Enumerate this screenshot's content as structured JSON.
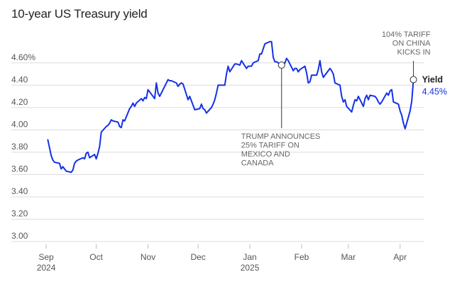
{
  "title": "10-year US Treasury yield",
  "colors": {
    "line": "#1431e8",
    "grid": "#dcdcdc",
    "text": "#555555",
    "marker": "#333333"
  },
  "chart_data": {
    "type": "line",
    "title": "10-year US Treasury yield",
    "xlabel": "",
    "ylabel": "",
    "ylim": [
      3.0,
      4.7
    ],
    "xlim": [
      "2024-08-29",
      "2025-04-13"
    ],
    "y_ticks": [
      {
        "value": 3.0,
        "label": "3.00"
      },
      {
        "value": 3.2,
        "label": "3.20"
      },
      {
        "value": 3.4,
        "label": "3.40"
      },
      {
        "value": 3.6,
        "label": "3.60"
      },
      {
        "value": 3.8,
        "label": "3.80"
      },
      {
        "value": 4.0,
        "label": "4.00"
      },
      {
        "value": 4.2,
        "label": "4.20"
      },
      {
        "value": 4.4,
        "label": "4.40"
      },
      {
        "value": 4.6,
        "label": "4.60%"
      }
    ],
    "x_ticks": [
      {
        "date": "2024-09-01",
        "label": "Sep",
        "sub": "2024"
      },
      {
        "date": "2024-10-01",
        "label": "Oct",
        "sub": ""
      },
      {
        "date": "2024-11-01",
        "label": "Nov",
        "sub": ""
      },
      {
        "date": "2024-12-01",
        "label": "Dec",
        "sub": ""
      },
      {
        "date": "2025-01-01",
        "label": "Jan",
        "sub": "2025"
      },
      {
        "date": "2025-02-01",
        "label": "Feb",
        "sub": ""
      },
      {
        "date": "2025-03-01",
        "label": "Mar",
        "sub": ""
      },
      {
        "date": "2025-04-01",
        "label": "Apr",
        "sub": ""
      }
    ],
    "series": [
      {
        "values": [
          [
            "2024-09-02",
            3.91
          ],
          [
            "2024-09-03",
            3.84
          ],
          [
            "2024-09-04",
            3.77
          ],
          [
            "2024-09-05",
            3.73
          ],
          [
            "2024-09-06",
            3.71
          ],
          [
            "2024-09-09",
            3.7
          ],
          [
            "2024-09-10",
            3.65
          ],
          [
            "2024-09-11",
            3.67
          ],
          [
            "2024-09-12",
            3.65
          ],
          [
            "2024-09-13",
            3.63
          ],
          [
            "2024-09-16",
            3.62
          ],
          [
            "2024-09-17",
            3.64
          ],
          [
            "2024-09-18",
            3.7
          ],
          [
            "2024-09-19",
            3.72
          ],
          [
            "2024-09-20",
            3.73
          ],
          [
            "2024-09-23",
            3.75
          ],
          [
            "2024-09-24",
            3.74
          ],
          [
            "2024-09-25",
            3.79
          ],
          [
            "2024-09-26",
            3.8
          ],
          [
            "2024-09-27",
            3.75
          ],
          [
            "2024-09-30",
            3.78
          ],
          [
            "2024-10-01",
            3.74
          ],
          [
            "2024-10-02",
            3.79
          ],
          [
            "2024-10-03",
            3.85
          ],
          [
            "2024-10-04",
            3.98
          ],
          [
            "2024-10-07",
            4.03
          ],
          [
            "2024-10-08",
            4.04
          ],
          [
            "2024-10-09",
            4.06
          ],
          [
            "2024-10-10",
            4.09
          ],
          [
            "2024-10-11",
            4.08
          ],
          [
            "2024-10-14",
            4.07
          ],
          [
            "2024-10-15",
            4.03
          ],
          [
            "2024-10-16",
            4.02
          ],
          [
            "2024-10-17",
            4.09
          ],
          [
            "2024-10-18",
            4.08
          ],
          [
            "2024-10-21",
            4.19
          ],
          [
            "2024-10-22",
            4.21
          ],
          [
            "2024-10-23",
            4.24
          ],
          [
            "2024-10-24",
            4.21
          ],
          [
            "2024-10-25",
            4.24
          ],
          [
            "2024-10-28",
            4.28
          ],
          [
            "2024-10-29",
            4.26
          ],
          [
            "2024-10-30",
            4.29
          ],
          [
            "2024-10-31",
            4.28
          ],
          [
            "2024-11-01",
            4.36
          ],
          [
            "2024-11-04",
            4.3
          ],
          [
            "2024-11-05",
            4.28
          ],
          [
            "2024-11-06",
            4.42
          ],
          [
            "2024-11-07",
            4.33
          ],
          [
            "2024-11-08",
            4.3
          ],
          [
            "2024-11-12",
            4.42
          ],
          [
            "2024-11-13",
            4.45
          ],
          [
            "2024-11-14",
            4.44
          ],
          [
            "2024-11-15",
            4.44
          ],
          [
            "2024-11-18",
            4.42
          ],
          [
            "2024-11-19",
            4.39
          ],
          [
            "2024-11-20",
            4.41
          ],
          [
            "2024-11-21",
            4.42
          ],
          [
            "2024-11-22",
            4.41
          ],
          [
            "2024-11-25",
            4.27
          ],
          [
            "2024-11-26",
            4.3
          ],
          [
            "2024-11-27",
            4.26
          ],
          [
            "2024-11-29",
            4.18
          ],
          [
            "2024-12-02",
            4.19
          ],
          [
            "2024-12-03",
            4.23
          ],
          [
            "2024-12-04",
            4.19
          ],
          [
            "2024-12-05",
            4.18
          ],
          [
            "2024-12-06",
            4.15
          ],
          [
            "2024-12-09",
            4.2
          ],
          [
            "2024-12-10",
            4.23
          ],
          [
            "2024-12-11",
            4.27
          ],
          [
            "2024-12-12",
            4.33
          ],
          [
            "2024-12-13",
            4.4
          ],
          [
            "2024-12-16",
            4.4
          ],
          [
            "2024-12-17",
            4.4
          ],
          [
            "2024-12-18",
            4.5
          ],
          [
            "2024-12-19",
            4.57
          ],
          [
            "2024-12-20",
            4.52
          ],
          [
            "2024-12-23",
            4.59
          ],
          [
            "2024-12-24",
            4.59
          ],
          [
            "2024-12-26",
            4.58
          ],
          [
            "2024-12-27",
            4.62
          ],
          [
            "2024-12-30",
            4.55
          ],
          [
            "2024-12-31",
            4.57
          ],
          [
            "2025-01-02",
            4.57
          ],
          [
            "2025-01-03",
            4.6
          ],
          [
            "2025-01-06",
            4.62
          ],
          [
            "2025-01-07",
            4.68
          ],
          [
            "2025-01-08",
            4.68
          ],
          [
            "2025-01-10",
            4.77
          ],
          [
            "2025-01-13",
            4.79
          ],
          [
            "2025-01-14",
            4.79
          ],
          [
            "2025-01-15",
            4.65
          ],
          [
            "2025-01-16",
            4.61
          ],
          [
            "2025-01-17",
            4.61
          ],
          [
            "2025-01-21",
            4.57
          ],
          [
            "2025-01-22",
            4.6
          ],
          [
            "2025-01-23",
            4.64
          ],
          [
            "2025-01-24",
            4.62
          ],
          [
            "2025-01-27",
            4.53
          ],
          [
            "2025-01-28",
            4.55
          ],
          [
            "2025-01-29",
            4.55
          ],
          [
            "2025-01-30",
            4.52
          ],
          [
            "2025-01-31",
            4.54
          ],
          [
            "2025-02-03",
            4.57
          ],
          [
            "2025-02-04",
            4.51
          ],
          [
            "2025-02-05",
            4.42
          ],
          [
            "2025-02-06",
            4.43
          ],
          [
            "2025-02-07",
            4.49
          ],
          [
            "2025-02-10",
            4.49
          ],
          [
            "2025-02-11",
            4.54
          ],
          [
            "2025-02-12",
            4.62
          ],
          [
            "2025-02-13",
            4.52
          ],
          [
            "2025-02-14",
            4.47
          ],
          [
            "2025-02-18",
            4.55
          ],
          [
            "2025-02-19",
            4.53
          ],
          [
            "2025-02-20",
            4.5
          ],
          [
            "2025-02-21",
            4.42
          ],
          [
            "2025-02-24",
            4.4
          ],
          [
            "2025-02-25",
            4.3
          ],
          [
            "2025-02-26",
            4.25
          ],
          [
            "2025-02-27",
            4.27
          ],
          [
            "2025-02-28",
            4.21
          ],
          [
            "2025-03-03",
            4.16
          ],
          [
            "2025-03-04",
            4.22
          ],
          [
            "2025-03-05",
            4.27
          ],
          [
            "2025-03-06",
            4.26
          ],
          [
            "2025-03-07",
            4.3
          ],
          [
            "2025-03-10",
            4.21
          ],
          [
            "2025-03-11",
            4.28
          ],
          [
            "2025-03-12",
            4.31
          ],
          [
            "2025-03-13",
            4.27
          ],
          [
            "2025-03-14",
            4.31
          ],
          [
            "2025-03-17",
            4.3
          ],
          [
            "2025-03-18",
            4.28
          ],
          [
            "2025-03-19",
            4.25
          ],
          [
            "2025-03-20",
            4.23
          ],
          [
            "2025-03-21",
            4.25
          ],
          [
            "2025-03-24",
            4.33
          ],
          [
            "2025-03-25",
            4.31
          ],
          [
            "2025-03-26",
            4.35
          ],
          [
            "2025-03-27",
            4.36
          ],
          [
            "2025-03-28",
            4.25
          ],
          [
            "2025-03-31",
            4.23
          ],
          [
            "2025-04-01",
            4.17
          ],
          [
            "2025-04-02",
            4.13
          ],
          [
            "2025-04-03",
            4.06
          ],
          [
            "2025-04-04",
            4.01
          ],
          [
            "2025-04-07",
            4.17
          ],
          [
            "2025-04-08",
            4.26
          ],
          [
            "2025-04-09",
            4.45
          ]
        ]
      }
    ],
    "annotations": [
      {
        "date": "2025-01-20",
        "value": 4.58,
        "lines": [
          "TRUMP ANNOUNCES",
          "25% TARIFF ON",
          "MEXICO AND",
          "CANADA"
        ]
      },
      {
        "date": "2025-04-09",
        "value": 4.45,
        "lines": [
          "104% TARIFF",
          "ON CHINA",
          "KICKS IN"
        ]
      }
    ],
    "end_label": {
      "name": "Yield",
      "value": "4.45%"
    }
  }
}
